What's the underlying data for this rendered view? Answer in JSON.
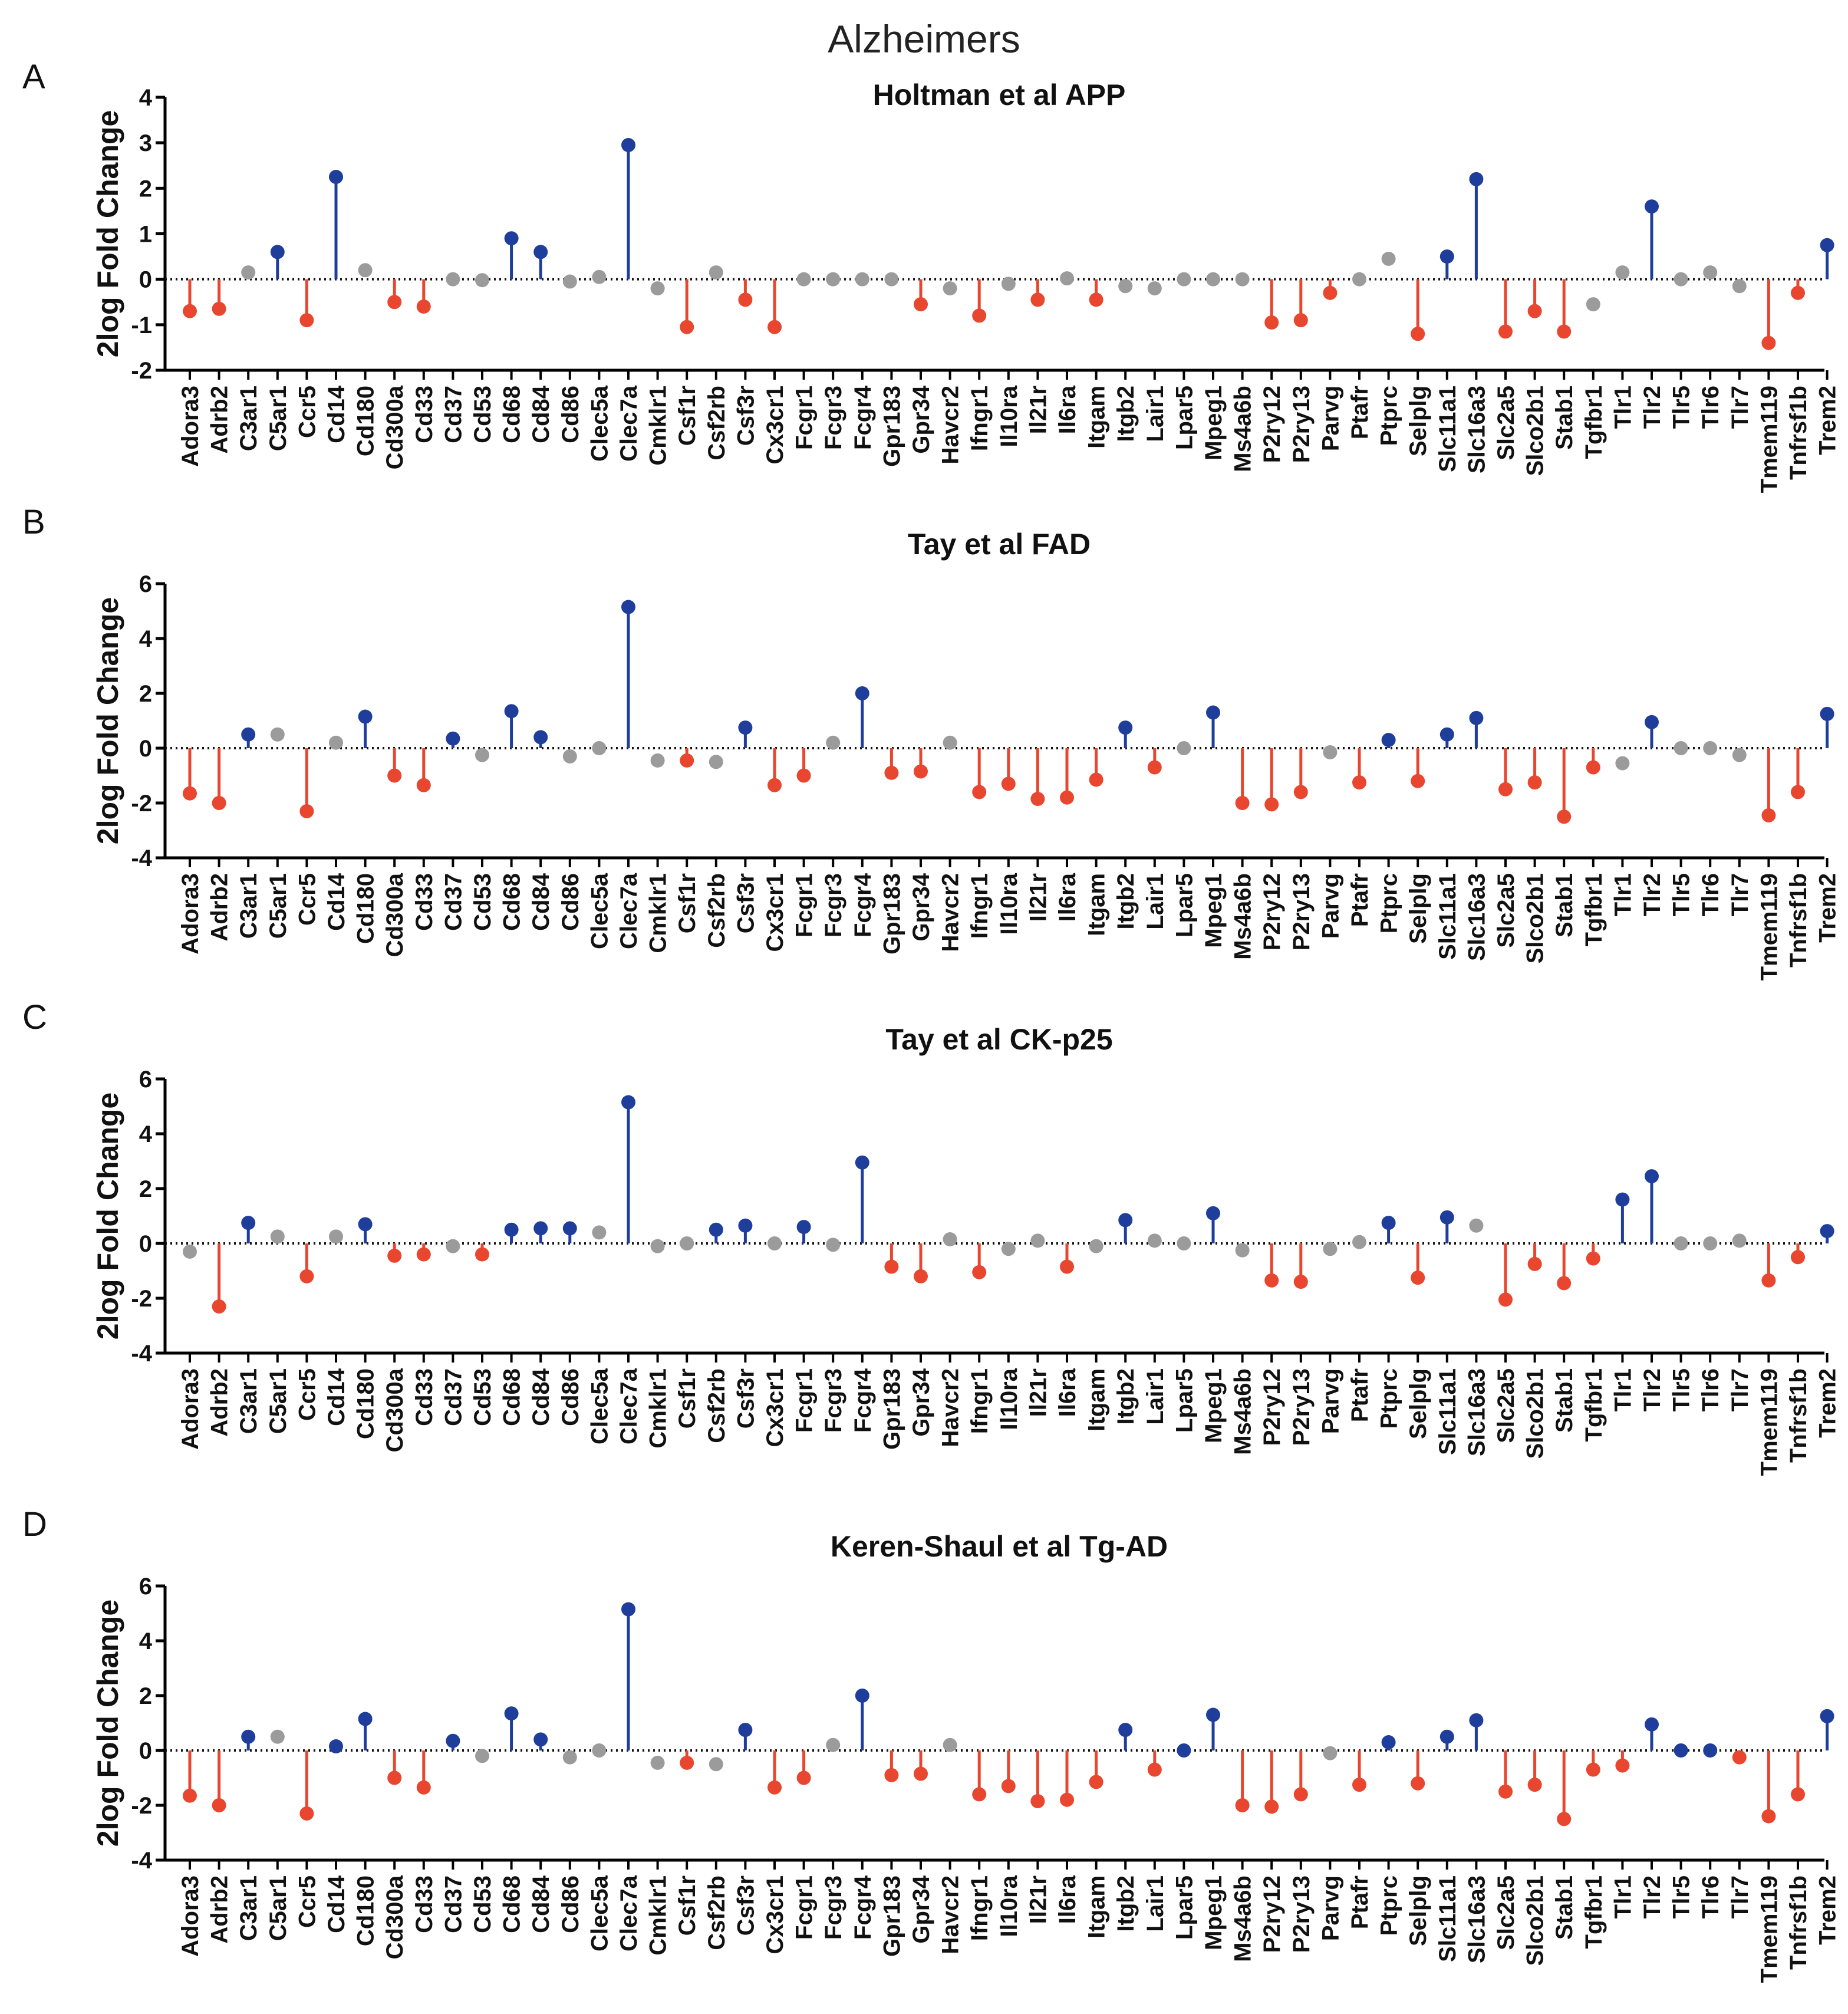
{
  "figure_title": "Alzheimers",
  "colors": {
    "up": "#1f3e9c",
    "down": "#e8462f",
    "neutral": "#9b9b9b",
    "axis": "#000000"
  },
  "chart_data": [
    {
      "type": "lollipop",
      "panel_letter": "A",
      "title": "Holtman et al APP",
      "ylabel": "2log Fold Change",
      "ylim": [
        -2,
        4
      ],
      "yticks": [
        "4",
        "3",
        "2",
        "1",
        "0",
        "-1",
        "-2"
      ],
      "ytick_values": [
        4,
        3,
        2,
        1,
        0,
        -1,
        -2
      ],
      "categories": [
        "Adora3",
        "Adrb2",
        "C3ar1",
        "C5ar1",
        "Ccr5",
        "Cd14",
        "Cd180",
        "Cd300a",
        "Cd33",
        "Cd37",
        "Cd53",
        "Cd68",
        "Cd84",
        "Cd86",
        "Clec5a",
        "Clec7a",
        "Cmklr1",
        "Csf1r",
        "Csf2rb",
        "Csf3r",
        "Cx3cr1",
        "Fcgr1",
        "Fcgr3",
        "Fcgr4",
        "Gpr183",
        "Gpr34",
        "Havcr2",
        "Ifngr1",
        "Il10ra",
        "Il21r",
        "Il6ra",
        "Itgam",
        "Itgb2",
        "Lair1",
        "Lpar5",
        "Mpeg1",
        "Ms4a6b",
        "P2ry12",
        "P2ry13",
        "Parvg",
        "Ptafr",
        "Ptprc",
        "Selplg",
        "Slc11a1",
        "Slc16a3",
        "Slc2a5",
        "Slco2b1",
        "Stab1",
        "Tgfbr1",
        "Tlr1",
        "Tlr2",
        "Tlr5",
        "Tlr6",
        "Tlr7",
        "Tmem119",
        "Tnfrsf1b",
        "Trem2"
      ],
      "values": [
        -0.7,
        -0.65,
        0.15,
        0.6,
        -0.9,
        2.25,
        0.2,
        -0.5,
        -0.6,
        0.0,
        -0.02,
        0.9,
        0.6,
        -0.05,
        0.05,
        2.95,
        -0.2,
        -1.05,
        0.15,
        -0.45,
        -1.05,
        0.0,
        0.0,
        0.0,
        0.0,
        -0.55,
        -0.2,
        -0.8,
        -0.1,
        -0.45,
        0.02,
        -0.45,
        -0.15,
        -0.2,
        0.0,
        0.0,
        0.0,
        -0.95,
        -0.9,
        -0.3,
        0.0,
        0.45,
        -1.2,
        0.5,
        2.2,
        -1.15,
        -0.7,
        -1.15,
        -0.55,
        0.15,
        1.6,
        0.0,
        0.15,
        -0.15,
        -1.4,
        -0.3,
        0.75
      ],
      "significance": [
        "down",
        "down",
        "ns",
        "up",
        "down",
        "up",
        "ns",
        "down",
        "down",
        "ns",
        "ns",
        "up",
        "up",
        "ns",
        "ns",
        "up",
        "ns",
        "down",
        "ns",
        "down",
        "down",
        "ns",
        "ns",
        "ns",
        "ns",
        "down",
        "ns",
        "down",
        "ns",
        "down",
        "ns",
        "down",
        "ns",
        "ns",
        "ns",
        "ns",
        "ns",
        "down",
        "down",
        "down",
        "ns",
        "ns",
        "down",
        "up",
        "up",
        "down",
        "down",
        "down",
        "ns",
        "ns",
        "up",
        "ns",
        "ns",
        "ns",
        "down",
        "down",
        "up"
      ]
    },
    {
      "type": "lollipop",
      "panel_letter": "B",
      "title": "Tay et al FAD",
      "ylabel": "2log Fold Change",
      "ylim": [
        -4,
        6
      ],
      "yticks": [
        "6",
        "4",
        "2",
        "0",
        "-2",
        "-4"
      ],
      "ytick_values": [
        6,
        4,
        2,
        0,
        -2,
        -4
      ],
      "categories": [
        "Adora3",
        "Adrb2",
        "C3ar1",
        "C5ar1",
        "Ccr5",
        "Cd14",
        "Cd180",
        "Cd300a",
        "Cd33",
        "Cd37",
        "Cd53",
        "Cd68",
        "Cd84",
        "Cd86",
        "Clec5a",
        "Clec7a",
        "Cmklr1",
        "Csf1r",
        "Csf2rb",
        "Csf3r",
        "Cx3cr1",
        "Fcgr1",
        "Fcgr3",
        "Fcgr4",
        "Gpr183",
        "Gpr34",
        "Havcr2",
        "Ifngr1",
        "Il10ra",
        "Il21r",
        "Il6ra",
        "Itgam",
        "Itgb2",
        "Lair1",
        "Lpar5",
        "Mpeg1",
        "Ms4a6b",
        "P2ry12",
        "P2ry13",
        "Parvg",
        "Ptafr",
        "Ptprc",
        "Selplg",
        "Slc11a1",
        "Slc16a3",
        "Slc2a5",
        "Slco2b1",
        "Stab1",
        "Tgfbr1",
        "Tlr1",
        "Tlr2",
        "Tlr5",
        "Tlr6",
        "Tlr7",
        "Tmem119",
        "Tnfrsf1b",
        "Trem2"
      ],
      "values": [
        -1.65,
        -2.0,
        0.5,
        0.5,
        -2.3,
        0.2,
        1.15,
        -1.0,
        -1.35,
        0.35,
        -0.25,
        1.35,
        0.4,
        -0.3,
        0.0,
        5.15,
        -0.45,
        -0.45,
        -0.5,
        0.75,
        -1.35,
        -1.0,
        0.2,
        2.0,
        -0.9,
        -0.85,
        0.2,
        -1.6,
        -1.3,
        -1.85,
        -1.8,
        -1.15,
        0.75,
        -0.7,
        0.0,
        1.3,
        -2.0,
        -2.05,
        -1.6,
        -0.15,
        -1.25,
        0.3,
        -1.2,
        0.5,
        1.1,
        -1.5,
        -1.25,
        -2.5,
        -0.7,
        -0.55,
        0.95,
        0.0,
        0.0,
        -0.25,
        -2.45,
        -1.6,
        1.25
      ],
      "significance": [
        "down",
        "down",
        "up",
        "ns",
        "down",
        "ns",
        "up",
        "down",
        "down",
        "up",
        "ns",
        "up",
        "up",
        "ns",
        "ns",
        "up",
        "ns",
        "down",
        "ns",
        "up",
        "down",
        "down",
        "ns",
        "up",
        "down",
        "down",
        "ns",
        "down",
        "down",
        "down",
        "down",
        "down",
        "up",
        "down",
        "ns",
        "up",
        "down",
        "down",
        "down",
        "ns",
        "down",
        "up",
        "down",
        "up",
        "up",
        "down",
        "down",
        "down",
        "down",
        "ns",
        "up",
        "ns",
        "ns",
        "ns",
        "down",
        "down",
        "up"
      ]
    },
    {
      "type": "lollipop",
      "panel_letter": "C",
      "title": "Tay et al CK-p25",
      "ylabel": "2log Fold Change",
      "ylim": [
        -4,
        6
      ],
      "yticks": [
        "6",
        "4",
        "2",
        "0",
        "-2",
        "-4"
      ],
      "ytick_values": [
        6,
        4,
        2,
        0,
        -2,
        -4
      ],
      "categories": [
        "Adora3",
        "Adrb2",
        "C3ar1",
        "C5ar1",
        "Ccr5",
        "Cd14",
        "Cd180",
        "Cd300a",
        "Cd33",
        "Cd37",
        "Cd53",
        "Cd68",
        "Cd84",
        "Cd86",
        "Clec5a",
        "Clec7a",
        "Cmklr1",
        "Csf1r",
        "Csf2rb",
        "Csf3r",
        "Cx3cr1",
        "Fcgr1",
        "Fcgr3",
        "Fcgr4",
        "Gpr183",
        "Gpr34",
        "Havcr2",
        "Ifngr1",
        "Il10ra",
        "Il21r",
        "Il6ra",
        "Itgam",
        "Itgb2",
        "Lair1",
        "Lpar5",
        "Mpeg1",
        "Ms4a6b",
        "P2ry12",
        "P2ry13",
        "Parvg",
        "Ptafr",
        "Ptprc",
        "Selplg",
        "Slc11a1",
        "Slc16a3",
        "Slc2a5",
        "Slco2b1",
        "Stab1",
        "Tgfbr1",
        "Tlr1",
        "Tlr2",
        "Tlr5",
        "Tlr6",
        "Tlr7",
        "Tmem119",
        "Tnfrsf1b",
        "Trem2"
      ],
      "values": [
        -0.3,
        -2.3,
        0.75,
        0.25,
        -1.2,
        0.25,
        0.7,
        -0.45,
        -0.4,
        -0.1,
        -0.4,
        0.5,
        0.55,
        0.55,
        0.4,
        5.15,
        -0.1,
        0.0,
        0.5,
        0.65,
        0.0,
        0.6,
        -0.05,
        2.95,
        -0.85,
        -1.2,
        0.15,
        -1.05,
        -0.2,
        0.1,
        -0.85,
        -0.1,
        0.85,
        0.1,
        0.0,
        1.1,
        -0.25,
        -1.35,
        -1.4,
        -0.2,
        0.05,
        0.75,
        -1.25,
        0.95,
        0.65,
        -2.05,
        -0.75,
        -1.45,
        -0.55,
        1.6,
        2.45,
        0.0,
        0.0,
        0.1,
        -1.35,
        -0.5,
        0.45
      ],
      "significance": [
        "ns",
        "down",
        "up",
        "ns",
        "down",
        "ns",
        "up",
        "down",
        "down",
        "ns",
        "down",
        "up",
        "up",
        "up",
        "ns",
        "up",
        "ns",
        "ns",
        "up",
        "up",
        "ns",
        "up",
        "ns",
        "up",
        "down",
        "down",
        "ns",
        "down",
        "ns",
        "ns",
        "down",
        "ns",
        "up",
        "ns",
        "ns",
        "up",
        "ns",
        "down",
        "down",
        "ns",
        "ns",
        "up",
        "down",
        "up",
        "ns",
        "down",
        "down",
        "down",
        "down",
        "up",
        "up",
        "ns",
        "ns",
        "ns",
        "down",
        "down",
        "up"
      ]
    },
    {
      "type": "lollipop",
      "panel_letter": "D",
      "title": "Keren-Shaul et al Tg-AD",
      "ylabel": "2log Fold Change",
      "ylim": [
        -4,
        6
      ],
      "yticks": [
        "6",
        "4",
        "2",
        "0",
        "-2",
        "-4"
      ],
      "ytick_values": [
        6,
        4,
        2,
        0,
        -2,
        -4
      ],
      "categories": [
        "Adora3",
        "Adrb2",
        "C3ar1",
        "C5ar1",
        "Ccr5",
        "Cd14",
        "Cd180",
        "Cd300a",
        "Cd33",
        "Cd37",
        "Cd53",
        "Cd68",
        "Cd84",
        "Cd86",
        "Clec5a",
        "Clec7a",
        "Cmklr1",
        "Csf1r",
        "Csf2rb",
        "Csf3r",
        "Cx3cr1",
        "Fcgr1",
        "Fcgr3",
        "Fcgr4",
        "Gpr183",
        "Gpr34",
        "Havcr2",
        "Ifngr1",
        "Il10ra",
        "Il21r",
        "Il6ra",
        "Itgam",
        "Itgb2",
        "Lair1",
        "Lpar5",
        "Mpeg1",
        "Ms4a6b",
        "P2ry12",
        "P2ry13",
        "Parvg",
        "Ptafr",
        "Ptprc",
        "Selplg",
        "Slc11a1",
        "Slc16a3",
        "Slc2a5",
        "Slco2b1",
        "Stab1",
        "Tgfbr1",
        "Tlr1",
        "Tlr2",
        "Tlr5",
        "Tlr6",
        "Tlr7",
        "Tmem119",
        "Tnfrsf1b",
        "Trem2"
      ],
      "values": [
        -1.65,
        -2.0,
        0.5,
        0.5,
        -2.3,
        0.15,
        1.15,
        -1.0,
        -1.35,
        0.35,
        -0.2,
        1.35,
        0.4,
        -0.25,
        0.0,
        5.15,
        -0.45,
        -0.45,
        -0.5,
        0.75,
        -1.35,
        -1.0,
        0.2,
        2.0,
        -0.9,
        -0.85,
        0.2,
        -1.6,
        -1.3,
        -1.85,
        -1.8,
        -1.15,
        0.75,
        -0.7,
        0.0,
        1.3,
        -2.0,
        -2.05,
        -1.6,
        -0.1,
        -1.25,
        0.3,
        -1.2,
        0.5,
        1.1,
        -1.5,
        -1.25,
        -2.5,
        -0.7,
        -0.55,
        0.95,
        0.0,
        0.0,
        -0.25,
        -2.4,
        -1.6,
        1.25
      ],
      "significance": [
        "down",
        "down",
        "up",
        "ns",
        "down",
        "up",
        "up",
        "down",
        "down",
        "up",
        "ns",
        "up",
        "up",
        "ns",
        "ns",
        "up",
        "ns",
        "down",
        "ns",
        "up",
        "down",
        "down",
        "ns",
        "up",
        "down",
        "down",
        "ns",
        "down",
        "down",
        "down",
        "down",
        "down",
        "up",
        "down",
        "up",
        "up",
        "down",
        "down",
        "down",
        "ns",
        "down",
        "up",
        "down",
        "up",
        "up",
        "down",
        "down",
        "down",
        "down",
        "down",
        "up",
        "up",
        "up",
        "down",
        "down",
        "down",
        "up"
      ]
    }
  ]
}
